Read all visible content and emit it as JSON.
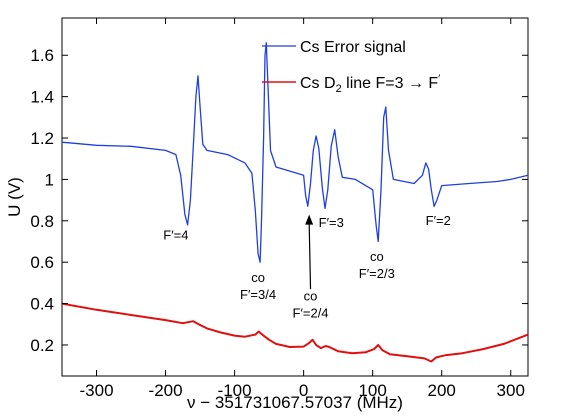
{
  "chart_data": {
    "type": "line",
    "title": "",
    "xlabel": "ν − 351731067.57037 (MHz)",
    "ylabel": "U (V)",
    "xlim": [
      -350,
      325
    ],
    "ylim": [
      0.05,
      1.78
    ],
    "xticks": [
      -300,
      -200,
      -100,
      0,
      100,
      200,
      300
    ],
    "yticks": [
      0.2,
      0.4,
      0.6,
      0.8,
      1.0,
      1.2,
      1.4,
      1.6
    ],
    "ytick_labels": [
      "0.2",
      "0.4",
      "0.6",
      "0.8",
      "1",
      "1.2",
      "1.4",
      "1.6"
    ],
    "grid": false,
    "legend_position": "top-right",
    "series": [
      {
        "name": "Cs Error signal",
        "legend_main": "Cs Error signal",
        "color": "#1f3fe0",
        "points": [
          [
            -350,
            1.18
          ],
          [
            -300,
            1.165
          ],
          [
            -250,
            1.16
          ],
          [
            -200,
            1.14
          ],
          [
            -185,
            1.12
          ],
          [
            -178,
            1.02
          ],
          [
            -172,
            0.83
          ],
          [
            -168,
            0.78
          ],
          [
            -164,
            0.9
          ],
          [
            -160,
            1.15
          ],
          [
            -156,
            1.4
          ],
          [
            -153,
            1.5
          ],
          [
            -150,
            1.35
          ],
          [
            -146,
            1.17
          ],
          [
            -140,
            1.14
          ],
          [
            -110,
            1.12
          ],
          [
            -85,
            1.08
          ],
          [
            -75,
            1.03
          ],
          [
            -70,
            0.85
          ],
          [
            -66,
            0.64
          ],
          [
            -63,
            0.6
          ],
          [
            -61,
            0.8
          ],
          [
            -58,
            1.2
          ],
          [
            -56,
            1.6
          ],
          [
            -54,
            1.66
          ],
          [
            -51,
            1.4
          ],
          [
            -48,
            1.14
          ],
          [
            -40,
            1.06
          ],
          [
            -20,
            1.04
          ],
          [
            0,
            1.02
          ],
          [
            3,
            0.92
          ],
          [
            6,
            0.87
          ],
          [
            10,
            0.98
          ],
          [
            14,
            1.14
          ],
          [
            18,
            1.21
          ],
          [
            22,
            1.15
          ],
          [
            27,
            0.96
          ],
          [
            31,
            0.86
          ],
          [
            35,
            0.95
          ],
          [
            40,
            1.16
          ],
          [
            45,
            1.24
          ],
          [
            50,
            1.11
          ],
          [
            56,
            1.01
          ],
          [
            75,
            1.0
          ],
          [
            100,
            0.95
          ],
          [
            105,
            0.78
          ],
          [
            108,
            0.7
          ],
          [
            112,
            0.95
          ],
          [
            116,
            1.3
          ],
          [
            119,
            1.35
          ],
          [
            123,
            1.14
          ],
          [
            130,
            1.0
          ],
          [
            160,
            0.98
          ],
          [
            172,
            1.02
          ],
          [
            177,
            1.08
          ],
          [
            181,
            1.05
          ],
          [
            185,
            0.95
          ],
          [
            189,
            0.87
          ],
          [
            193,
            0.9
          ],
          [
            200,
            0.97
          ],
          [
            240,
            0.98
          ],
          [
            280,
            0.99
          ],
          [
            300,
            1.0
          ],
          [
            325,
            1.02
          ]
        ]
      },
      {
        "name": "Cs D2 line F=3 → F′",
        "legend_main": "Cs D",
        "legend_sub": "2",
        "legend_rest": " line F=3 → F",
        "legend_sup": "′",
        "color": "#e01010",
        "points": [
          [
            -350,
            0.4
          ],
          [
            -300,
            0.37
          ],
          [
            -250,
            0.345
          ],
          [
            -200,
            0.32
          ],
          [
            -175,
            0.305
          ],
          [
            -160,
            0.315
          ],
          [
            -152,
            0.3
          ],
          [
            -140,
            0.28
          ],
          [
            -120,
            0.26
          ],
          [
            -100,
            0.245
          ],
          [
            -85,
            0.24
          ],
          [
            -70,
            0.25
          ],
          [
            -65,
            0.265
          ],
          [
            -60,
            0.25
          ],
          [
            -50,
            0.225
          ],
          [
            -40,
            0.205
          ],
          [
            -20,
            0.19
          ],
          [
            0,
            0.192
          ],
          [
            8,
            0.21
          ],
          [
            13,
            0.225
          ],
          [
            18,
            0.2
          ],
          [
            25,
            0.185
          ],
          [
            32,
            0.195
          ],
          [
            37,
            0.19
          ],
          [
            50,
            0.17
          ],
          [
            70,
            0.16
          ],
          [
            90,
            0.165
          ],
          [
            102,
            0.18
          ],
          [
            108,
            0.2
          ],
          [
            114,
            0.175
          ],
          [
            125,
            0.155
          ],
          [
            150,
            0.145
          ],
          [
            175,
            0.135
          ],
          [
            185,
            0.12
          ],
          [
            192,
            0.14
          ],
          [
            205,
            0.15
          ],
          [
            230,
            0.16
          ],
          [
            260,
            0.18
          ],
          [
            290,
            0.205
          ],
          [
            325,
            0.25
          ]
        ]
      }
    ],
    "annotations": [
      {
        "lines": [
          "F′=4"
        ],
        "x": -185,
        "y": 0.71
      },
      {
        "lines": [
          "co",
          "F′=3/4"
        ],
        "x": -66,
        "y": 0.505
      },
      {
        "lines": [
          "co",
          "F′=2/4"
        ],
        "x": 10,
        "y": 0.415
      },
      {
        "lines": [
          "F′=3"
        ],
        "x": 40,
        "y": 0.77
      },
      {
        "lines": [
          "co",
          "F′=2/3"
        ],
        "x": 106,
        "y": 0.605
      },
      {
        "lines": [
          "F′=2"
        ],
        "x": 195,
        "y": 0.78
      }
    ],
    "arrow": {
      "from": [
        10,
        0.47
      ],
      "to": [
        8,
        0.83
      ]
    }
  }
}
